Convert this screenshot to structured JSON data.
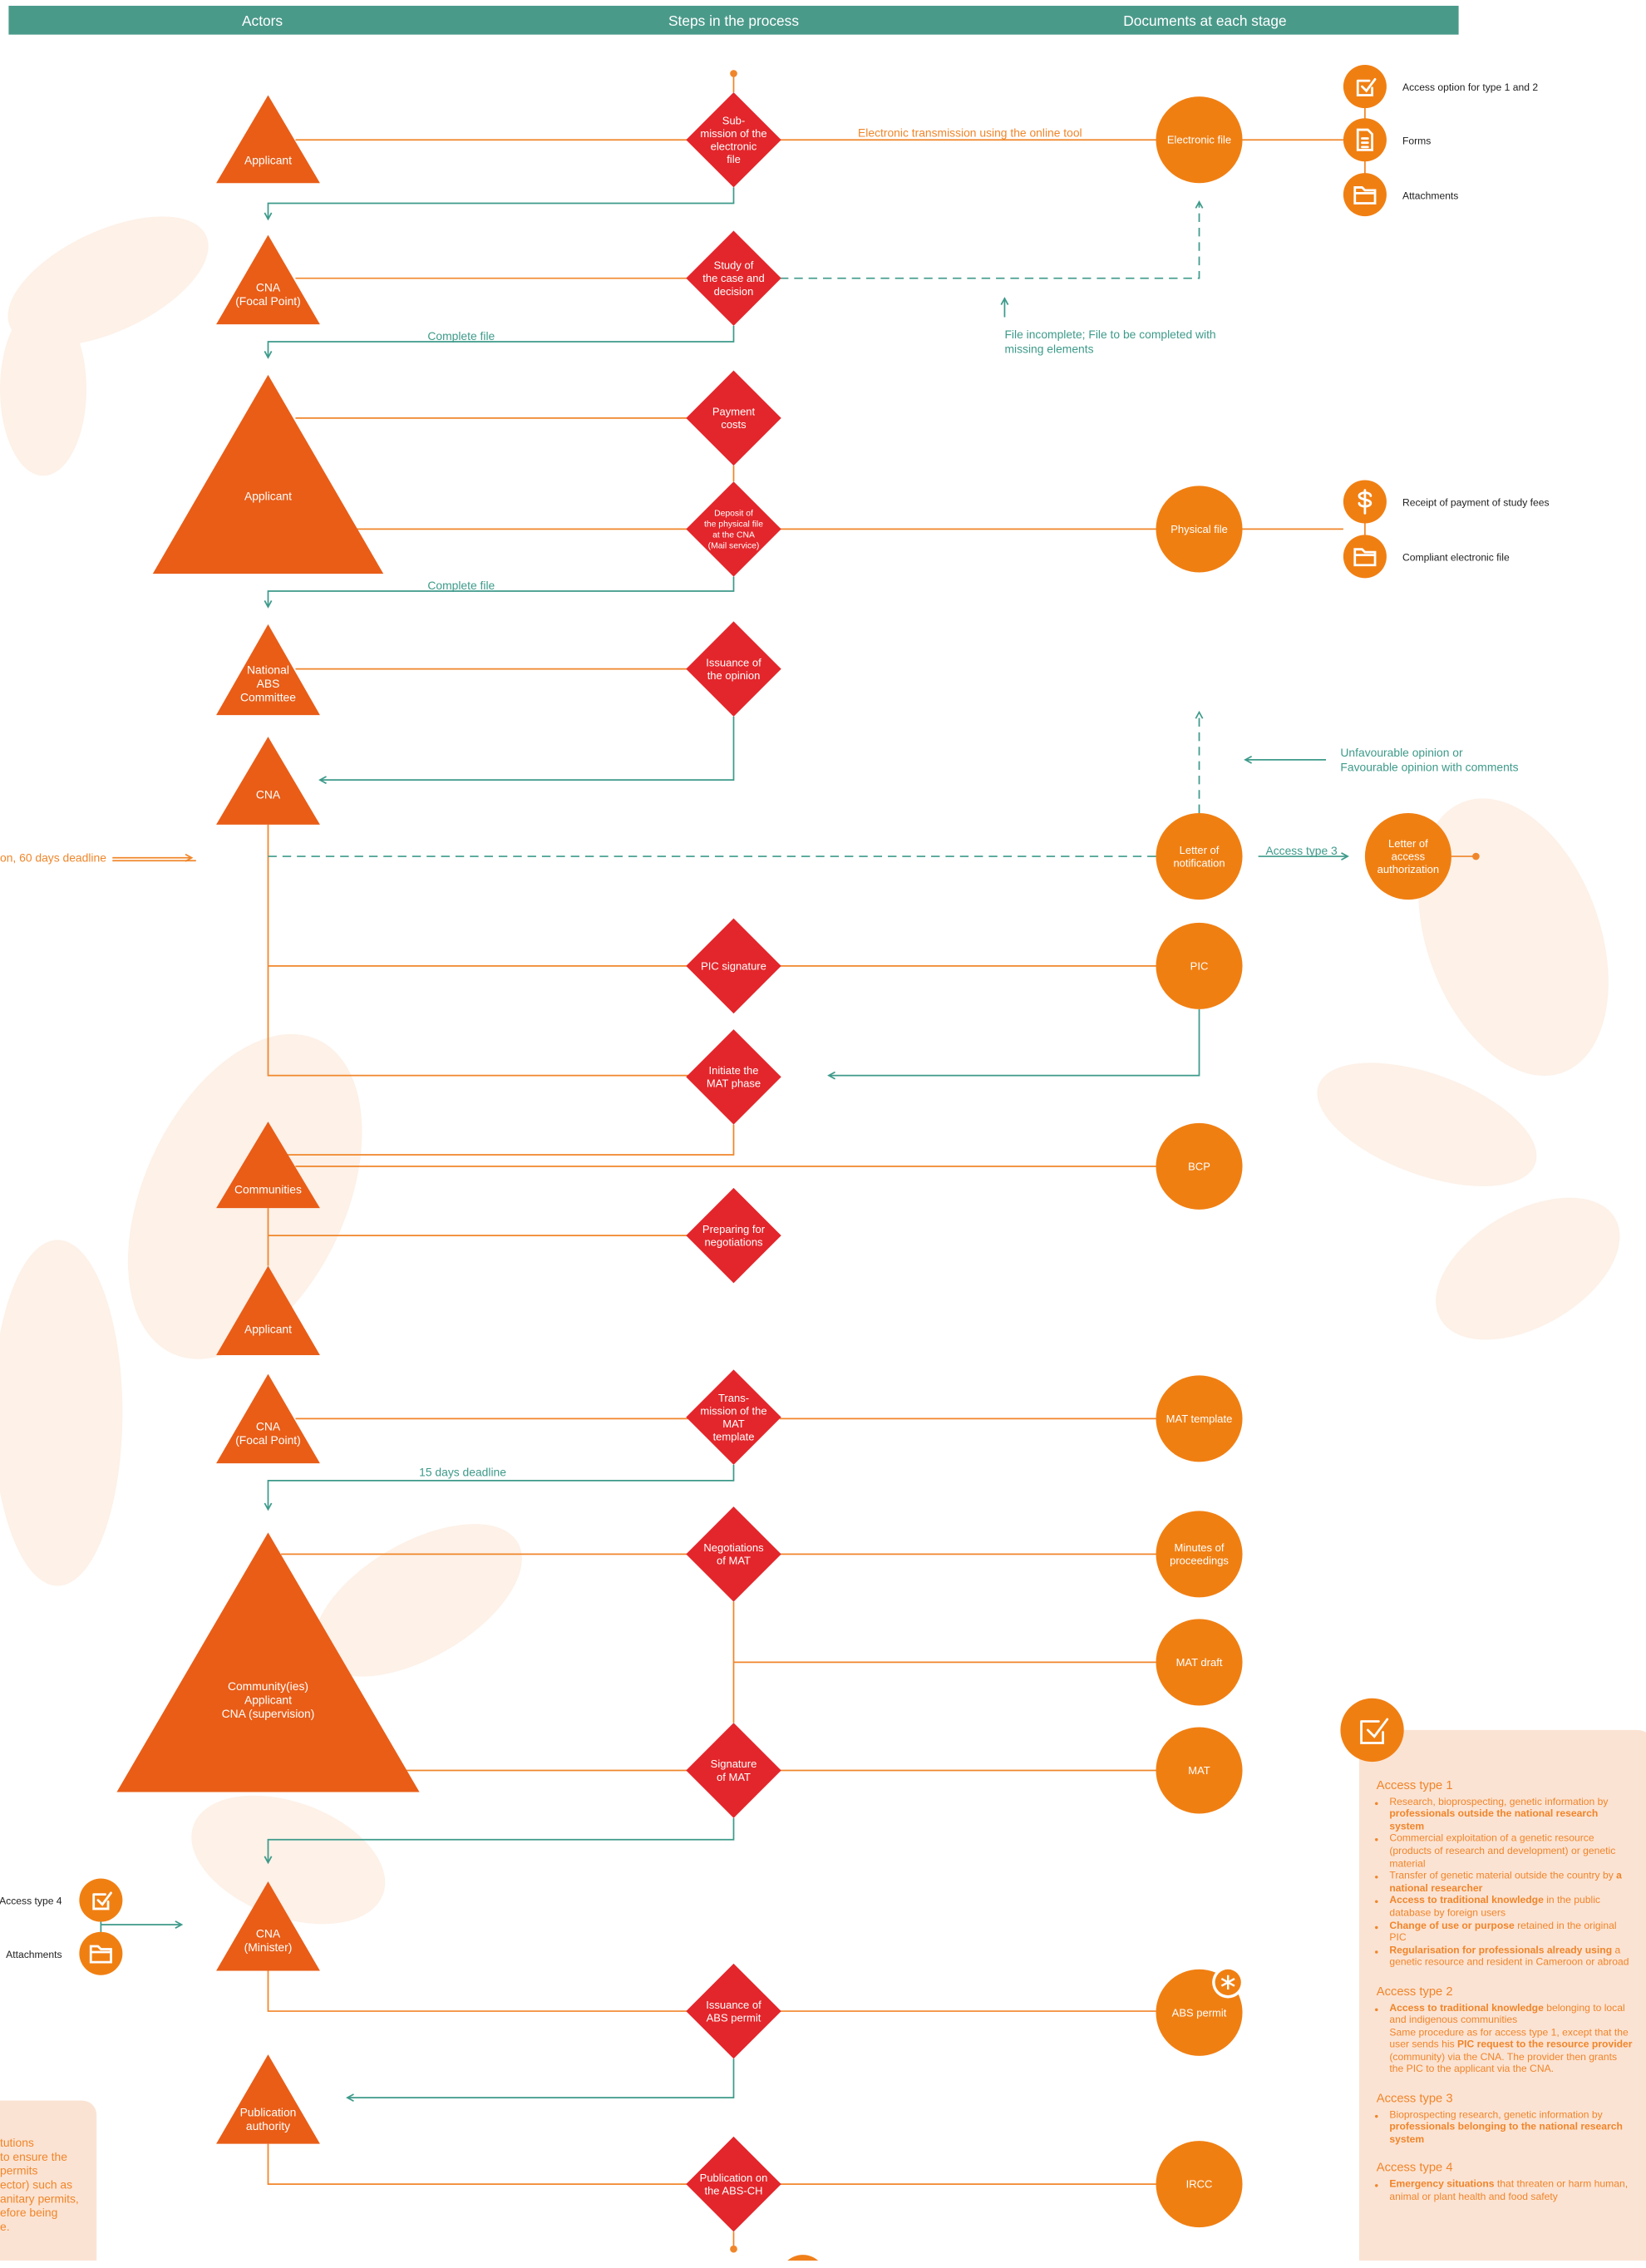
{
  "header": {
    "columns": [
      "Actors",
      "Steps in the process",
      "Documents at each stage"
    ]
  },
  "actors": [
    {
      "lines": [
        "Applicant"
      ]
    },
    {
      "lines": [
        "CNA",
        "(Focal Point)"
      ]
    },
    {
      "lines": [
        "Applicant"
      ]
    },
    {
      "lines": [
        "National",
        "ABS",
        "Committee"
      ]
    },
    {
      "lines": [
        "CNA"
      ]
    },
    {
      "lines": [
        "Communities"
      ]
    },
    {
      "lines": [
        "Applicant"
      ]
    },
    {
      "lines": [
        "CNA",
        "(Focal Point)"
      ]
    },
    {
      "lines": [
        "Community(ies)",
        "Applicant",
        "CNA (supervision)"
      ]
    },
    {
      "lines": [
        "CNA",
        "(Minister)"
      ]
    },
    {
      "lines": [
        "Publication",
        "authority"
      ]
    }
  ],
  "steps": [
    {
      "lines": [
        "Sub-",
        "mission of the",
        "electronic",
        "file"
      ]
    },
    {
      "lines": [
        "Study of",
        "the case and",
        "decision"
      ]
    },
    {
      "lines": [
        "Payment",
        "costs"
      ]
    },
    {
      "lines": [
        "Deposit of",
        "the physical file",
        "at the CNA",
        "(Mail service)"
      ]
    },
    {
      "lines": [
        "Issuance of",
        "the opinion"
      ]
    },
    {
      "lines": [
        "PIC signature"
      ]
    },
    {
      "lines": [
        "Initiate the",
        "MAT phase"
      ]
    },
    {
      "lines": [
        "Preparing for",
        "negotiations"
      ]
    },
    {
      "lines": [
        "Trans-",
        "mission of the",
        "MAT",
        "template"
      ]
    },
    {
      "lines": [
        "Negotiations",
        "of MAT"
      ]
    },
    {
      "lines": [
        "Signature",
        "of MAT"
      ]
    },
    {
      "lines": [
        "Issuance of",
        "ABS permit"
      ]
    },
    {
      "lines": [
        "Publication on",
        "the ABS-CH"
      ]
    }
  ],
  "documents": [
    {
      "lines": [
        "Electronic file"
      ]
    },
    {
      "lines": [
        "Physical file"
      ]
    },
    {
      "lines": [
        "Letter of",
        "notification"
      ]
    },
    {
      "lines": [
        "Letter of",
        "access",
        "authorization"
      ]
    },
    {
      "lines": [
        "PIC"
      ]
    },
    {
      "lines": [
        "BCP"
      ]
    },
    {
      "lines": [
        "MAT template"
      ]
    },
    {
      "lines": [
        "Minutes of",
        "proceedings"
      ]
    },
    {
      "lines": [
        "MAT draft"
      ]
    },
    {
      "lines": [
        "MAT"
      ]
    },
    {
      "lines": [
        "ABS permit"
      ]
    },
    {
      "lines": [
        "IRCC"
      ]
    }
  ],
  "icon_labels": [
    "Access option for type 1 and 2",
    "Forms",
    "Attachments",
    "Receipt of payment of study fees",
    "Compliant electronic file",
    "Access type 4",
    "Attachments"
  ],
  "edge_labels": [
    {
      "lines": [
        "Electronic transmission using the online tool"
      ]
    },
    {
      "lines": [
        "Complete file"
      ]
    },
    {
      "lines": [
        "File incomplete; File to be completed with",
        "missing elements"
      ]
    },
    {
      "lines": [
        "Complete file"
      ]
    },
    {
      "lines": [
        "Unfavourable opinion or",
        "Favourable opinion with comments"
      ]
    },
    {
      "lines": [
        "on, 60 days deadline"
      ]
    },
    {
      "lines": [
        "Access type 3"
      ]
    },
    {
      "lines": [
        "15 days deadline"
      ]
    }
  ],
  "left_note": {
    "lines": [
      "tutions",
      "to ensure the",
      "permits",
      "ector) such as",
      "anitary permits,",
      "efore being",
      "e."
    ]
  },
  "legend": {
    "sections": [
      {
        "title": "Access type 1",
        "items": [
          [
            {
              "text": "Research, bioprospecting, genetic information by ",
              "bold": false
            },
            {
              "text": "professionals outside the national research system",
              "bold": true
            }
          ],
          [
            {
              "text": "Commercial exploitation of a genetic resource (products of research and development) or genetic material",
              "bold": false
            }
          ],
          [
            {
              "text": "Transfer of genetic material outside the country by ",
              "bold": false
            },
            {
              "text": "a national researcher",
              "bold": true
            }
          ],
          [
            {
              "text": "Access to traditional knowledge",
              "bold": true
            },
            {
              "text": " in the public database by foreign users",
              "bold": false
            }
          ],
          [
            {
              "text": "Change of use or purpose",
              "bold": true
            },
            {
              "text": " retained in the original PIC",
              "bold": false
            }
          ],
          [
            {
              "text": "Regularisation for professionals already using",
              "bold": true
            },
            {
              "text": " a genetic resource and resident in Cameroon or abroad",
              "bold": false
            }
          ]
        ]
      },
      {
        "title": "Access type 2",
        "items": [
          [
            {
              "text": "Access to traditional knowledge",
              "bold": true
            },
            {
              "text": " belonging to local and indigenous communities\nSame procedure as for access type 1, except that the user sends his ",
              "bold": false
            },
            {
              "text": "PIC request to the resource provider",
              "bold": true
            },
            {
              "text": " (community) via the CNA. The provider then grants the PIC to the applicant via the CNA.",
              "bold": false
            }
          ]
        ]
      },
      {
        "title": "Access type 3",
        "items": [
          [
            {
              "text": "Bioprospecting research, genetic information by ",
              "bold": false
            },
            {
              "text": "professionals belonging to the national research system",
              "bold": true
            }
          ]
        ]
      },
      {
        "title": "Access type 4",
        "items": [
          [
            {
              "text": "Emergency situations",
              "bold": true
            },
            {
              "text": " that threaten or harm human, animal or plant health and food safety",
              "bold": false
            }
          ]
        ]
      }
    ]
  }
}
